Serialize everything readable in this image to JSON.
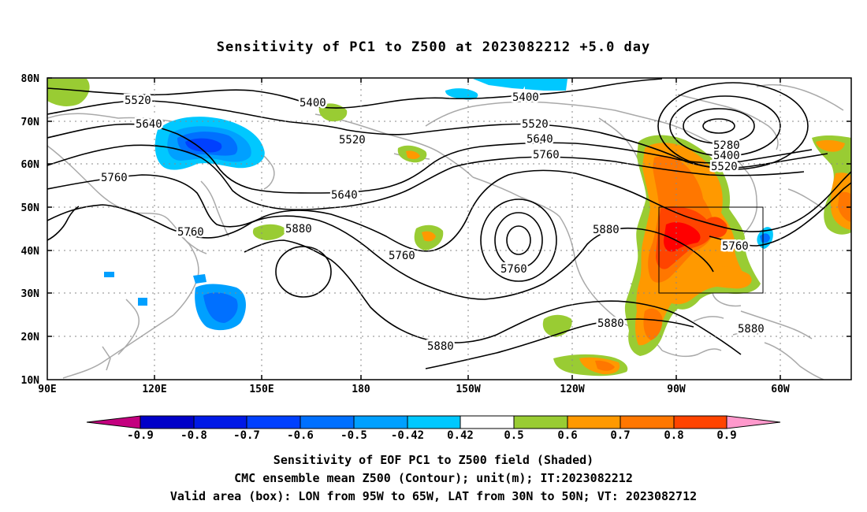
{
  "title": "Sensitivity of PC1 to Z500 at 2023082212 +5.0 day",
  "map": {
    "lat_labels": [
      "80N",
      "70N",
      "60N",
      "50N",
      "40N",
      "30N",
      "20N",
      "10N"
    ],
    "lon_labels": [
      "90E",
      "120E",
      "150E",
      "180",
      "150W",
      "120W",
      "90W",
      "60W"
    ],
    "contour_labels": [
      {
        "text": "5400",
        "pos": "north-central"
      },
      {
        "text": "5400",
        "pos": "north-pacific-east"
      },
      {
        "text": "5520",
        "pos": "north-west"
      },
      {
        "text": "5520",
        "pos": "bering"
      },
      {
        "text": "5520",
        "pos": "alaska"
      },
      {
        "text": "5640",
        "pos": "siberia"
      },
      {
        "text": "5640",
        "pos": "north-pacific"
      },
      {
        "text": "5640",
        "pos": "alaska-south"
      },
      {
        "text": "5760",
        "pos": "west"
      },
      {
        "text": "5760",
        "pos": "japan"
      },
      {
        "text": "5760",
        "pos": "central-pacific"
      },
      {
        "text": "5760",
        "pos": "closed-low"
      },
      {
        "text": "5760",
        "pos": "canada"
      },
      {
        "text": "5760",
        "pos": "atlantic-coast"
      },
      {
        "text": "5880",
        "pos": "west-pacific"
      },
      {
        "text": "5880",
        "pos": "subtropical"
      },
      {
        "text": "5880",
        "pos": "north-america"
      },
      {
        "text": "5880",
        "pos": "gulf"
      },
      {
        "text": "5880",
        "pos": "caribbean"
      },
      {
        "text": "5280",
        "pos": "greenland-low"
      },
      {
        "text": "5400",
        "pos": "greenland-low-2"
      },
      {
        "text": "5520",
        "pos": "greenland-low-3"
      }
    ],
    "valid_box": {
      "lon_from": "95W",
      "lon_to": "65W",
      "lat_from": "30N",
      "lat_to": "50N"
    }
  },
  "colorbar": {
    "labels": [
      "-0.9",
      "-0.8",
      "-0.7",
      "-0.6",
      "-0.5",
      "-0.42",
      "0.42",
      "0.5",
      "0.6",
      "0.7",
      "0.8",
      "0.9"
    ],
    "colors": [
      "#c4007f",
      "#0000c8",
      "#0019e6",
      "#0040ff",
      "#0070ff",
      "#00a0ff",
      "#00c8ff",
      "#ffffff",
      "#99cc33",
      "#ff9900",
      "#ff7700",
      "#ff4400",
      "#ff0000",
      "#ff99cc"
    ]
  },
  "captions": {
    "line1": "Sensitivity of EOF PC1 to Z500 field (Shaded)",
    "line2": "CMC ensemble mean Z500 (Contour); unit(m); IT:2023082212",
    "line3": "Valid area (box): LON from 95W to 65W, LAT from 30N to 50N; VT: 2023082712"
  }
}
